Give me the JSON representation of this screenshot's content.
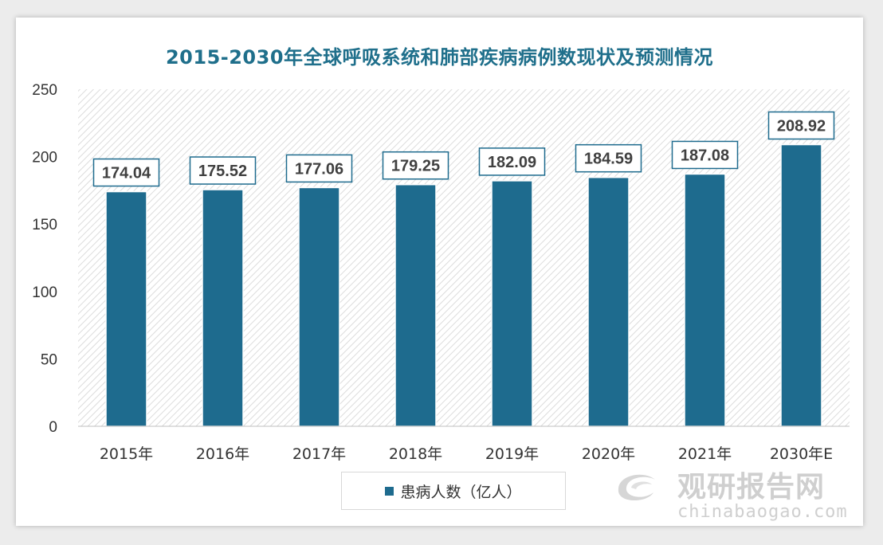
{
  "chart_data": {
    "type": "bar",
    "title": "2015-2030年全球呼吸系统和肺部疾病病例数现状及预测情况",
    "categories": [
      "2015年",
      "2016年",
      "2017年",
      "2018年",
      "2019年",
      "2020年",
      "2021年",
      "2030年E"
    ],
    "series": [
      {
        "name": "患病人数（亿人）",
        "values": [
          174.04,
          175.52,
          177.06,
          179.25,
          182.09,
          184.59,
          187.08,
          208.92
        ]
      }
    ],
    "data_labels": [
      "174.04",
      "175.52",
      "177.06",
      "179.25",
      "182.09",
      "184.59",
      "187.08",
      "208.92"
    ],
    "ylim": [
      0,
      250
    ],
    "yticks": [
      0,
      50,
      100,
      150,
      200,
      250
    ],
    "xlabel": "",
    "ylabel": "",
    "grid": false,
    "legend_position": "bottom",
    "bar_color": "#1e6b8e",
    "label_border_color": "#1e6b8e",
    "title_color": "#1f6f8b"
  },
  "watermark": {
    "cn": "观研报告网",
    "en": "chinabaogao.com",
    "icon": "logo-swirl-icon"
  }
}
